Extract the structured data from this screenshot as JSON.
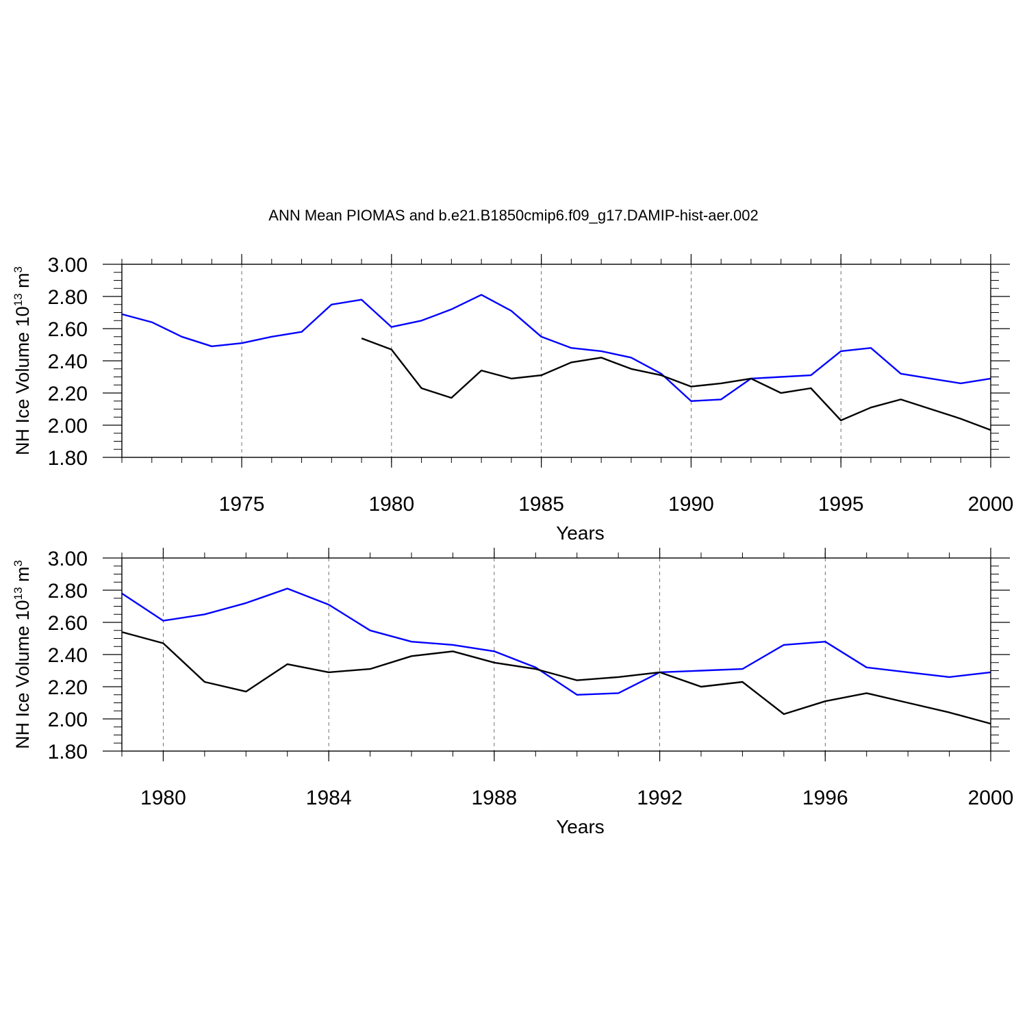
{
  "title": "ANN Mean PIOMAS and b.e21.B1850cmip6.f09_g17.DAMIP-hist-aer.002",
  "colors": {
    "model": "#0000ff",
    "piomas": "#000000",
    "axis": "#000000",
    "grid": "#000000"
  },
  "chart_data": [
    {
      "type": "line",
      "xlabel": "Years",
      "ylabel": {
        "base": "NH Ice Volume 10",
        "exp": "13",
        "unit": " m",
        "unit_exp": "3"
      },
      "xlim": [
        1971,
        2000
      ],
      "ylim": [
        1.8,
        3.0
      ],
      "x_ticks": [
        1975,
        1980,
        1985,
        1990,
        1995,
        2000
      ],
      "x_tick_labels": [
        "1975",
        "1980",
        "1985",
        "1990",
        "1995",
        "2000"
      ],
      "y_ticks": [
        1.8,
        2.0,
        2.2,
        2.4,
        2.6,
        2.8,
        3.0
      ],
      "y_tick_labels": [
        "1.80",
        "2.00",
        "2.20",
        "2.40",
        "2.60",
        "2.80",
        "3.00"
      ],
      "grid": "vertical dashed at major x ticks",
      "series": [
        {
          "color_key": "model",
          "x": [
            1971,
            1972,
            1973,
            1974,
            1975,
            1976,
            1977,
            1978,
            1979,
            1980,
            1981,
            1982,
            1983,
            1984,
            1985,
            1986,
            1987,
            1988,
            1989,
            1990,
            1991,
            1992,
            1993,
            1994,
            1995,
            1996,
            1997,
            1998,
            1999,
            2000
          ],
          "values": [
            2.69,
            2.64,
            2.55,
            2.49,
            2.51,
            2.55,
            2.58,
            2.75,
            2.78,
            2.61,
            2.65,
            2.72,
            2.81,
            2.71,
            2.55,
            2.48,
            2.46,
            2.42,
            2.32,
            2.15,
            2.16,
            2.29,
            2.3,
            2.31,
            2.46,
            2.48,
            2.32,
            2.29,
            2.26,
            2.29
          ]
        },
        {
          "color_key": "piomas",
          "x": [
            1979,
            1980,
            1981,
            1982,
            1983,
            1984,
            1985,
            1986,
            1987,
            1988,
            1989,
            1990,
            1991,
            1992,
            1993,
            1994,
            1995,
            1996,
            1997,
            1998,
            1999,
            2000
          ],
          "values": [
            2.54,
            2.47,
            2.23,
            2.17,
            2.34,
            2.29,
            2.31,
            2.39,
            2.42,
            2.35,
            2.31,
            2.24,
            2.26,
            2.29,
            2.2,
            2.23,
            2.03,
            2.11,
            2.16,
            2.1,
            2.04,
            1.97
          ]
        }
      ]
    },
    {
      "type": "line",
      "xlabel": "Years",
      "ylabel": {
        "base": "NH Ice Volume 10",
        "exp": "13",
        "unit": " m",
        "unit_exp": "3"
      },
      "xlim": [
        1979,
        2000
      ],
      "ylim": [
        1.8,
        3.0
      ],
      "x_ticks": [
        1980,
        1984,
        1988,
        1992,
        1996,
        2000
      ],
      "x_tick_labels": [
        "1980",
        "1984",
        "1988",
        "1992",
        "1996",
        "2000"
      ],
      "y_ticks": [
        1.8,
        2.0,
        2.2,
        2.4,
        2.6,
        2.8,
        3.0
      ],
      "y_tick_labels": [
        "1.80",
        "2.00",
        "2.20",
        "2.40",
        "2.60",
        "2.80",
        "3.00"
      ],
      "grid": "vertical dashed at major x ticks",
      "series": [
        {
          "color_key": "model",
          "x": [
            1979,
            1980,
            1981,
            1982,
            1983,
            1984,
            1985,
            1986,
            1987,
            1988,
            1989,
            1990,
            1991,
            1992,
            1993,
            1994,
            1995,
            1996,
            1997,
            1998,
            1999,
            2000
          ],
          "values": [
            2.78,
            2.61,
            2.65,
            2.72,
            2.81,
            2.71,
            2.55,
            2.48,
            2.46,
            2.42,
            2.32,
            2.15,
            2.16,
            2.29,
            2.3,
            2.31,
            2.46,
            2.48,
            2.32,
            2.29,
            2.26,
            2.29
          ]
        },
        {
          "color_key": "piomas",
          "x": [
            1979,
            1980,
            1981,
            1982,
            1983,
            1984,
            1985,
            1986,
            1987,
            1988,
            1989,
            1990,
            1991,
            1992,
            1993,
            1994,
            1995,
            1996,
            1997,
            1998,
            1999,
            2000
          ],
          "values": [
            2.54,
            2.47,
            2.23,
            2.17,
            2.34,
            2.29,
            2.31,
            2.39,
            2.42,
            2.35,
            2.31,
            2.24,
            2.26,
            2.29,
            2.2,
            2.23,
            2.03,
            2.11,
            2.16,
            2.1,
            2.04,
            1.97
          ]
        }
      ]
    }
  ]
}
